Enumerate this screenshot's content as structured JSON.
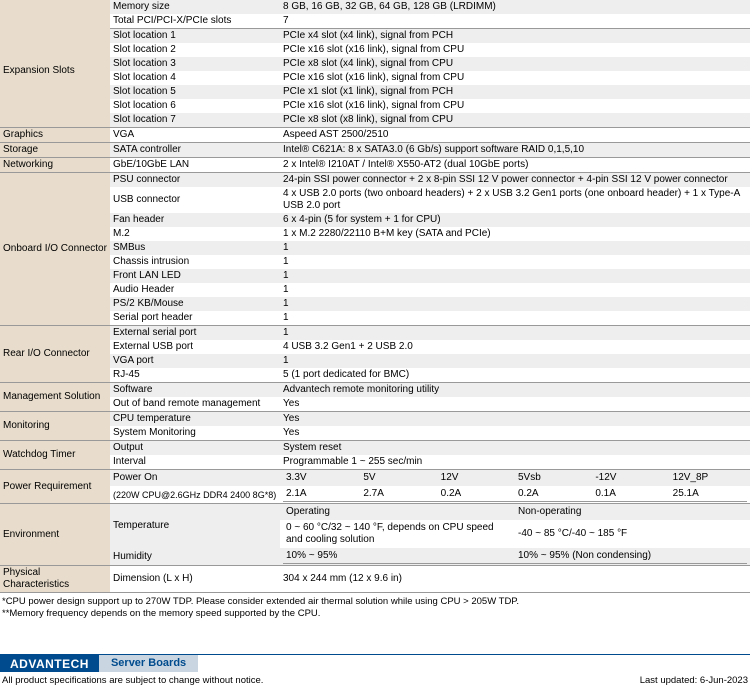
{
  "colors": {
    "cat_bg": "#e8ddcc",
    "row_odd_bg": "#eeeeee",
    "row_even_bg": "#ffffff",
    "advantech_blue": "#004b8d",
    "footer_cat_bg": "#c9d6e2"
  },
  "rows": [
    {
      "cat": "",
      "sub": "Memory size",
      "val": "8 GB, 16 GB, 32 GB, 64 GB, 128 GB (LRDIMM)",
      "z": "odd",
      "border": false
    },
    {
      "cat": "Expansion Slots",
      "rowspan": 8,
      "sub": "Total PCI/PCI-X/PCIe slots",
      "val": "7",
      "z": "even",
      "border": true,
      "catborder": false
    },
    {
      "sub": "Slot location 1",
      "val": "PCIe x4 slot (x4 link), signal from PCH",
      "z": "odd"
    },
    {
      "sub": "Slot location 2",
      "val": "PCIe x16 slot (x16 link), signal from CPU",
      "z": "even"
    },
    {
      "sub": "Slot location 3",
      "val": "PCIe x8 slot (x4 link), signal from CPU",
      "z": "odd"
    },
    {
      "sub": "Slot location 4",
      "val": "PCIe x16 slot (x16 link), signal from CPU",
      "z": "even"
    },
    {
      "sub": "Slot location 5",
      "val": "PCIe x1 slot (x1 link), signal from PCH",
      "z": "odd"
    },
    {
      "sub": "Slot location 6",
      "val": "PCIe x16 slot (x16 link), signal from CPU",
      "z": "even"
    },
    {
      "sub": "Slot location 7",
      "val": "PCIe x8 slot (x8 link), signal from CPU",
      "z": "odd",
      "border": true
    },
    {
      "cat": "Graphics",
      "rowspan": 1,
      "sub": "VGA",
      "val": "Aspeed AST 2500/2510",
      "z": "even",
      "border": true
    },
    {
      "cat": "Storage",
      "rowspan": 1,
      "sub": "SATA controller",
      "val": "Intel® C621A: 8 x SATA3.0 (6 Gb/s) support software RAID 0,1,5,10",
      "z": "odd",
      "border": true
    },
    {
      "cat": "Networking",
      "rowspan": 1,
      "sub": "GbE/10GbE LAN",
      "val": "2 x Intel® I210AT / Intel® X550-AT2 (dual 10GbE ports)",
      "z": "even",
      "border": true
    },
    {
      "cat": "Onboard I/O Connector",
      "rowspan": 10,
      "sub": "PSU connector",
      "val": "24-pin SSI power connector + 2 x 8-pin SSI 12 V power connector + 4-pin SSI 12 V power connector",
      "z": "odd"
    },
    {
      "sub": "USB connector",
      "val": "4 x USB 2.0 ports (two onboard headers) + 2 x USB 3.2 Gen1 ports (one onboard header) + 1 x Type-A USB 2.0 port",
      "z": "even"
    },
    {
      "sub": "Fan header",
      "val": "6 x 4-pin (5 for system + 1 for CPU)",
      "z": "odd"
    },
    {
      "sub": "M.2",
      "val": "1 x M.2 2280/22110 B+M key (SATA and PCIe)",
      "z": "even"
    },
    {
      "sub": "SMBus",
      "val": "1",
      "z": "odd"
    },
    {
      "sub": "Chassis intrusion",
      "val": "1",
      "z": "even"
    },
    {
      "sub": "Front LAN LED",
      "val": "1",
      "z": "odd"
    },
    {
      "sub": "Audio Header",
      "val": "1",
      "z": "even"
    },
    {
      "sub": "PS/2 KB/Mouse",
      "val": "1",
      "z": "odd"
    },
    {
      "sub": "Serial port header",
      "val": "1",
      "z": "even",
      "border": true
    },
    {
      "cat": "Rear I/O Connector",
      "rowspan": 4,
      "sub": "External serial port",
      "val": "1",
      "z": "odd"
    },
    {
      "sub": "External USB port",
      "val": "4 USB 3.2 Gen1 + 2 USB 2.0",
      "z": "even"
    },
    {
      "sub": "VGA port",
      "val": "1",
      "z": "odd"
    },
    {
      "sub": "RJ-45",
      "val": "5 (1 port dedicated for BMC)",
      "z": "even",
      "border": true
    },
    {
      "cat": "Management Solution",
      "rowspan": 2,
      "sub": "Software",
      "val": "Advantech remote monitoring utility",
      "z": "odd"
    },
    {
      "sub": "Out of band remote management",
      "val": "Yes",
      "z": "even",
      "border": true
    },
    {
      "cat": "Monitoring",
      "rowspan": 2,
      "sub": "CPU temperature",
      "val": "Yes",
      "z": "odd"
    },
    {
      "sub": "System Monitoring",
      "val": "Yes",
      "z": "even",
      "border": true
    },
    {
      "cat": "Watchdog Timer",
      "rowspan": 2,
      "sub": "Output",
      "val": "System reset",
      "z": "odd"
    },
    {
      "sub": "Interval",
      "val": "Programmable 1 ~ 255 sec/min",
      "z": "even",
      "border": true
    }
  ],
  "power_req": {
    "category": "Power Requirement",
    "sub1": "Power On",
    "sub2": "(220W CPU@2.6GHz DDR4 2400 8G*8)",
    "cols": [
      "3.3V",
      "5V",
      "12V",
      "5Vsb",
      "-12V",
      "12V_8P"
    ],
    "vals": [
      "2.1A",
      "2.7A",
      "0.2A",
      "0.2A",
      "0.1A",
      "25.1A"
    ]
  },
  "environment": {
    "category": "Environment",
    "temp_label": "Temperature",
    "operating_label": "Operating",
    "operating_val": "0 ~ 60 °C/32 ~ 140  °F, depends on CPU speed and cooling solution",
    "nonoperating_label": "Non-operating",
    "nonoperating_val": "-40 ~ 85 °C/-40 ~ 185  °F",
    "humidity_label": "Humidity",
    "humidity_op": "10% ~ 95%",
    "humidity_nonop": "10% ~ 95% (Non condensing)"
  },
  "physical": {
    "category": "Physical Characteristics",
    "sub": "Dimension (L x H)",
    "val": "304 x 244 mm (12 x 9.6 in)"
  },
  "footnotes": {
    "l1": "*CPU power design support up to 270W TDP. Please consider extended air thermal solution while using CPU > 205W TDP.",
    "l2": "**Memory frequency depends on the memory speed supported by the CPU."
  },
  "footer": {
    "logo": "ADVANTECH",
    "category": "Server Boards",
    "disclaimer": "All product specifications are subject to change without notice.",
    "updated": "Last updated: 6-Jun-2023"
  }
}
